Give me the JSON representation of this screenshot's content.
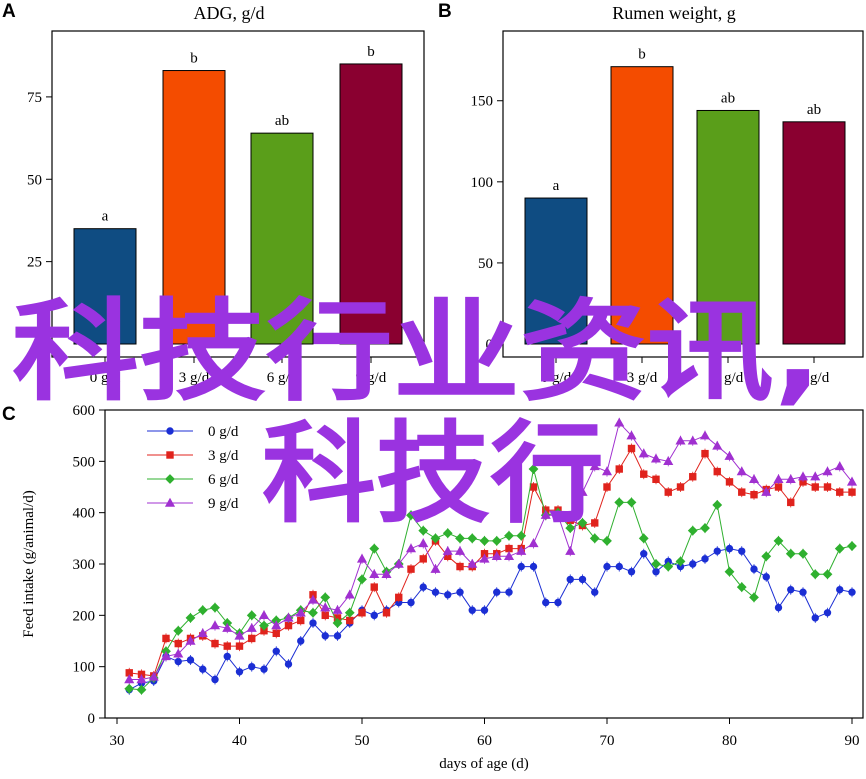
{
  "colors": {
    "bar_0": "#0f4c82",
    "bar_3": "#f44c00",
    "bar_6": "#5a9e1a",
    "bar_9": "#8a0030",
    "series_0": "#1b2ed4",
    "series_3": "#e0231d",
    "series_6": "#2fb02f",
    "series_9": "#a030d0",
    "watermark": "#9a33e0"
  },
  "watermark": {
    "line1": "科技行业资讯,",
    "line2": "科技行"
  },
  "chart_data": [
    {
      "panel": "A",
      "type": "bar",
      "title": "ADG, g/d",
      "categories": [
        "0 g/d",
        "3 g/d",
        "6 g/d",
        "9 g/d"
      ],
      "values": [
        35,
        83,
        64,
        85
      ],
      "labels": [
        "a",
        "b",
        "ab",
        "b"
      ],
      "ylim": [
        0,
        95
      ],
      "yticks": [
        0,
        25,
        50,
        75
      ],
      "grid": false
    },
    {
      "panel": "B",
      "type": "bar",
      "title": "Rumen weight, g",
      "categories": [
        "0 g/d",
        "3 g/d",
        "6 g/d",
        "9 g/d"
      ],
      "values": [
        90,
        171,
        144,
        137
      ],
      "labels": [
        "a",
        "b",
        "ab",
        "ab"
      ],
      "ylim": [
        0,
        193
      ],
      "yticks": [
        0,
        50,
        100,
        150
      ],
      "grid": false
    },
    {
      "panel": "C",
      "type": "line",
      "xlabel": "days of age (d)",
      "ylabel": "Feed intake (g/animal/d)",
      "xlim": [
        30,
        90
      ],
      "ylim": [
        0,
        600
      ],
      "xticks": [
        30,
        40,
        50,
        60,
        70,
        80,
        90
      ],
      "yticks": [
        0,
        100,
        200,
        300,
        400,
        500,
        600
      ],
      "legend_position": "top-left",
      "grid": false,
      "x": [
        31,
        32,
        33,
        34,
        35,
        36,
        37,
        38,
        39,
        40,
        41,
        42,
        43,
        44,
        45,
        46,
        47,
        48,
        49,
        50,
        51,
        52,
        53,
        54,
        55,
        56,
        57,
        58,
        59,
        60,
        61,
        62,
        63,
        64,
        65,
        66,
        67,
        68,
        69,
        70,
        71,
        72,
        73,
        74,
        75,
        76,
        77,
        78,
        79,
        80,
        81,
        82,
        83,
        84,
        85,
        86,
        87,
        88,
        89,
        90
      ],
      "series": [
        {
          "name": "0 g/d",
          "marker": "circle",
          "values": [
            55,
            68,
            72,
            120,
            110,
            113,
            95,
            75,
            120,
            90,
            100,
            95,
            130,
            105,
            150,
            185,
            160,
            160,
            185,
            210,
            200,
            210,
            225,
            225,
            255,
            245,
            240,
            245,
            210,
            210,
            245,
            245,
            295,
            295,
            225,
            225,
            270,
            270,
            245,
            295,
            295,
            285,
            320,
            285,
            305,
            295,
            300,
            310,
            325,
            330,
            325,
            290,
            275,
            215,
            250,
            245,
            195,
            205,
            250,
            245
          ]
        },
        {
          "name": "3 g/d",
          "marker": "square",
          "values": [
            88,
            85,
            82,
            155,
            145,
            155,
            160,
            145,
            140,
            140,
            155,
            170,
            165,
            180,
            190,
            240,
            200,
            195,
            190,
            205,
            255,
            205,
            235,
            290,
            310,
            345,
            315,
            295,
            295,
            320,
            320,
            330,
            330,
            450,
            405,
            405,
            385,
            375,
            380,
            450,
            485,
            525,
            475,
            465,
            440,
            450,
            470,
            515,
            480,
            460,
            440,
            435,
            445,
            450,
            420,
            460,
            450,
            450,
            440,
            440
          ]
        },
        {
          "name": "6 g/d",
          "marker": "diamond",
          "values": [
            57,
            55,
            78,
            130,
            170,
            195,
            210,
            215,
            185,
            165,
            200,
            180,
            190,
            195,
            210,
            205,
            235,
            185,
            205,
            270,
            330,
            285,
            300,
            395,
            365,
            350,
            360,
            350,
            350,
            345,
            345,
            355,
            355,
            485,
            395,
            400,
            370,
            380,
            350,
            345,
            420,
            420,
            350,
            300,
            295,
            305,
            365,
            370,
            415,
            285,
            255,
            235,
            315,
            345,
            320,
            320,
            280,
            280,
            330,
            335
          ]
        },
        {
          "name": "9 g/d",
          "marker": "triangle",
          "values": [
            75,
            75,
            80,
            120,
            125,
            150,
            165,
            180,
            175,
            160,
            175,
            200,
            180,
            195,
            205,
            230,
            215,
            210,
            240,
            310,
            280,
            280,
            300,
            330,
            340,
            290,
            325,
            325,
            300,
            310,
            315,
            315,
            325,
            340,
            395,
            395,
            325,
            440,
            490,
            480,
            575,
            550,
            515,
            505,
            500,
            540,
            540,
            550,
            530,
            510,
            480,
            465,
            440,
            465,
            465,
            470,
            470,
            480,
            490,
            460
          ]
        }
      ]
    }
  ]
}
